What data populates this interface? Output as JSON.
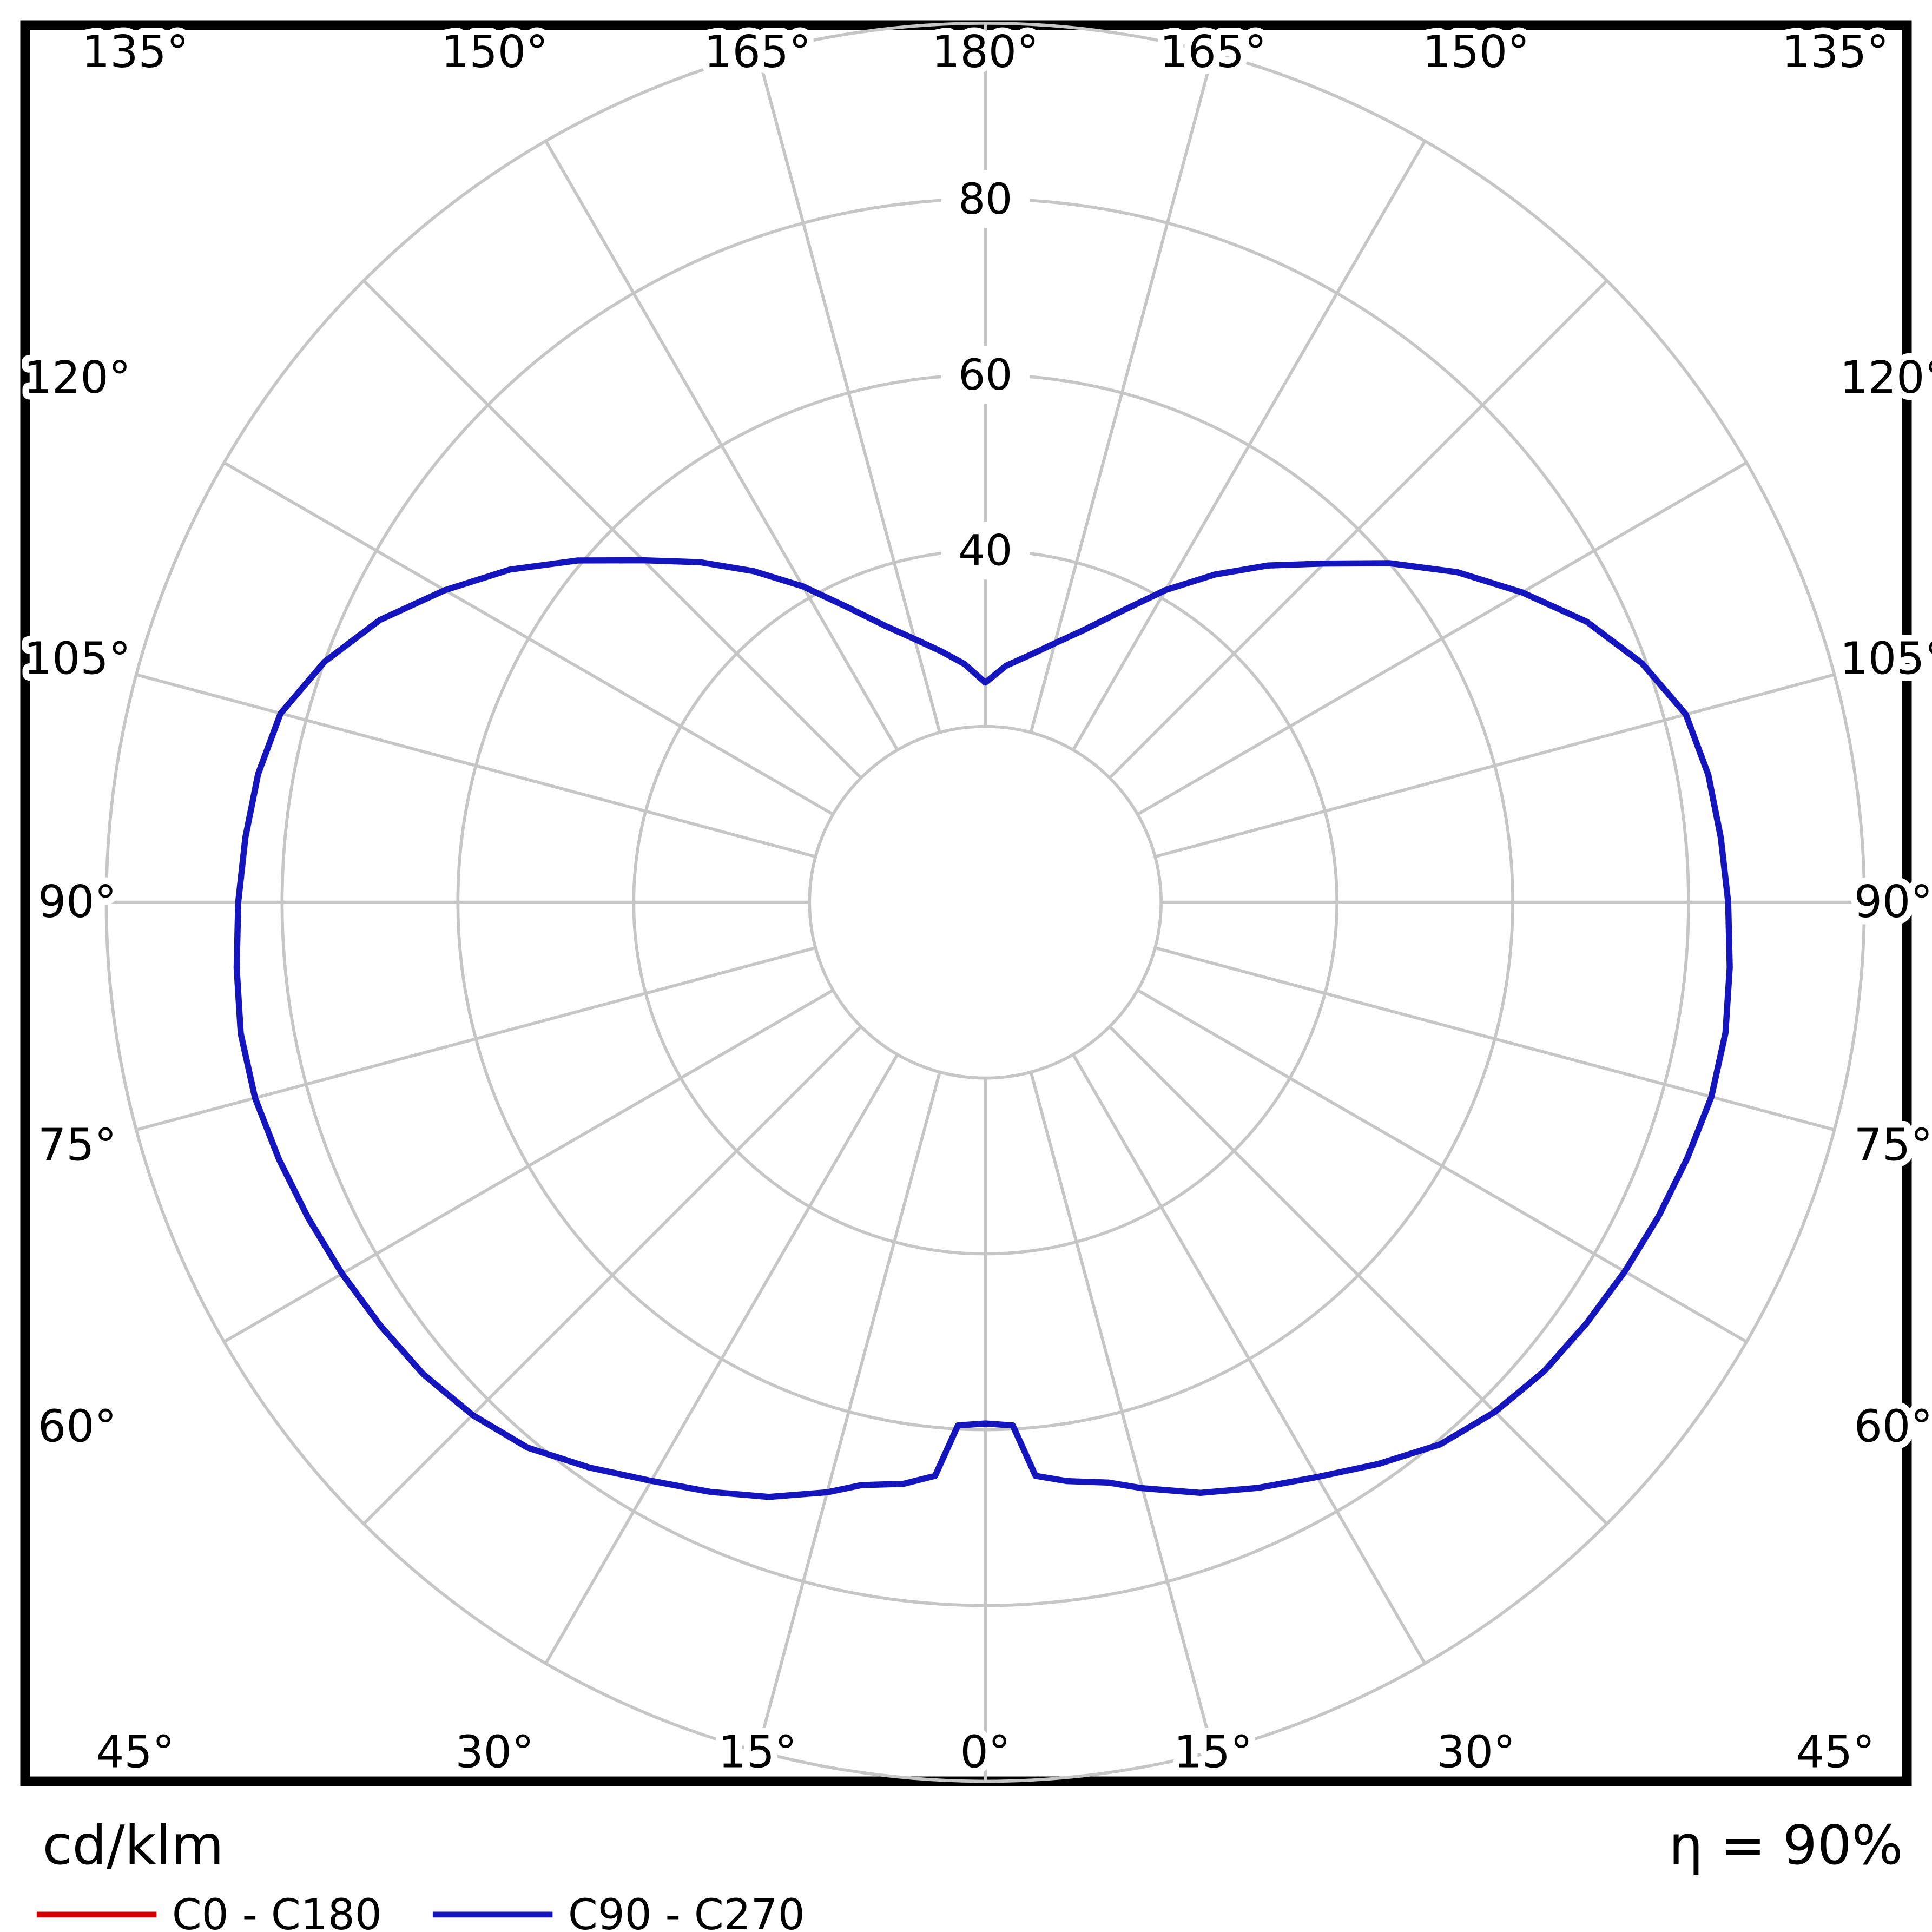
{
  "page": {
    "background": "#ffffff",
    "frame_color": "#000000"
  },
  "footer": {
    "unit": "cd/klm",
    "efficiency": "η = 90%"
  },
  "legend": {
    "items": [
      {
        "label": "C0 - C180",
        "color": "#d40000"
      },
      {
        "label": "C90 - C270",
        "color": "#1515bd"
      }
    ]
  },
  "chart_data": {
    "type": "polar",
    "subtype": "photometric-intensity-distribution",
    "unit": "cd/klm",
    "efficiency_text": "η = 90%",
    "orientation": "0° at bottom (nadir), 180° at top, symmetric left/right",
    "grid": {
      "ring_values": [
        20,
        40,
        60,
        80,
        100
      ],
      "ring_tick_labels": [
        "40",
        "60",
        "80"
      ],
      "spoke_step_deg": 15,
      "rmax": 100,
      "color": "#c6c6c6"
    },
    "angle_labels": [
      "0°",
      "15°",
      "30°",
      "45°",
      "60°",
      "75°",
      "90°",
      "105°",
      "120°",
      "135°",
      "150°",
      "165°",
      "180°"
    ],
    "series": [
      {
        "name": "C0 - C180",
        "color": "#d40000",
        "visible_curve": false,
        "right_points_deg_value": [],
        "left_points_deg_value": []
      },
      {
        "name": "C90 - C270",
        "color": "#1515bd",
        "visible_curve": true,
        "right_points_deg_value": [
          [
            0,
            59.3
          ],
          [
            3,
            59.6
          ],
          [
            5,
            65.5
          ],
          [
            8,
            66.5
          ],
          [
            12,
            67.5
          ],
          [
            15,
            69
          ],
          [
            20,
            71.5
          ],
          [
            25,
            73.5
          ],
          [
            30,
            75.5
          ],
          [
            35,
            78
          ],
          [
            40,
            80.5
          ],
          [
            45,
            82
          ],
          [
            50,
            83
          ],
          [
            55,
            83.5
          ],
          [
            60,
            84
          ],
          [
            65,
            84.5
          ],
          [
            70,
            85
          ],
          [
            75,
            85.5
          ],
          [
            80,
            85.5
          ],
          [
            85,
            85
          ],
          [
            90,
            84.5
          ],
          [
            95,
            84
          ],
          [
            100,
            83.5
          ],
          [
            105,
            82.5
          ],
          [
            110,
            79.5
          ],
          [
            115,
            75.5
          ],
          [
            120,
            70.5
          ],
          [
            125,
            65.5
          ],
          [
            130,
            60
          ],
          [
            135,
            54.5
          ],
          [
            140,
            50
          ],
          [
            145,
            45.5
          ],
          [
            150,
            41
          ],
          [
            155,
            36.5
          ],
          [
            160,
            33
          ],
          [
            165,
            30.5
          ],
          [
            170,
            28.5
          ],
          [
            175,
            27
          ],
          [
            180,
            25
          ]
        ],
        "left_points_deg_value": [
          [
            0,
            59.3
          ],
          [
            3,
            59.6
          ],
          [
            5,
            65.5
          ],
          [
            8,
            66.8
          ],
          [
            12,
            67.8
          ],
          [
            15,
            69.5
          ],
          [
            20,
            72
          ],
          [
            25,
            74
          ],
          [
            30,
            76
          ],
          [
            35,
            78.5
          ],
          [
            40,
            81
          ],
          [
            45,
            82.5
          ],
          [
            50,
            83.5
          ],
          [
            55,
            84
          ],
          [
            60,
            84.5
          ],
          [
            65,
            85
          ],
          [
            70,
            85.5
          ],
          [
            75,
            86
          ],
          [
            80,
            86
          ],
          [
            85,
            85.5
          ],
          [
            90,
            85
          ],
          [
            95,
            84.5
          ],
          [
            100,
            84
          ],
          [
            105,
            83
          ],
          [
            110,
            80
          ],
          [
            115,
            76
          ],
          [
            120,
            71
          ],
          [
            125,
            66
          ],
          [
            130,
            60.5
          ],
          [
            135,
            55
          ],
          [
            140,
            50.5
          ],
          [
            145,
            46
          ],
          [
            150,
            41.5
          ],
          [
            155,
            37
          ],
          [
            160,
            33.5
          ],
          [
            165,
            31
          ],
          [
            170,
            29
          ],
          [
            175,
            27.2
          ],
          [
            180,
            25
          ]
        ]
      }
    ]
  }
}
